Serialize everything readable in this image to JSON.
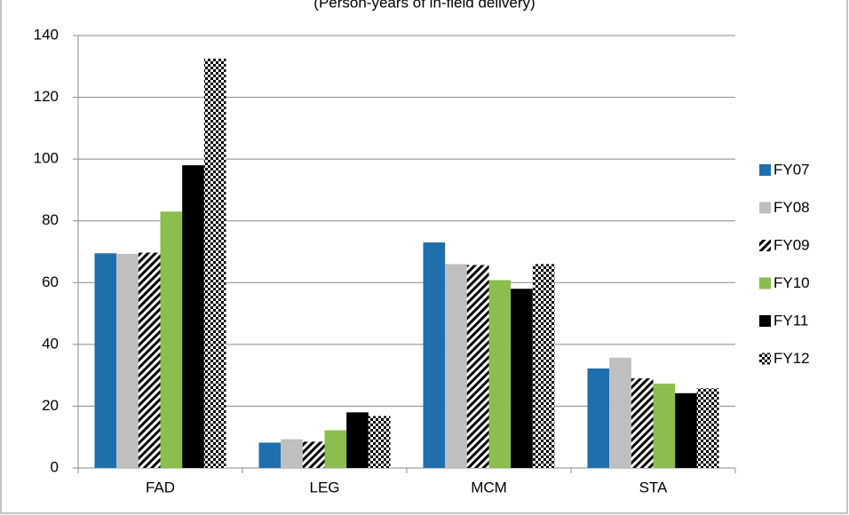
{
  "chart_data": {
    "type": "bar",
    "subtitle": "(Person-years of in-field delivery)",
    "categories": [
      "FAD",
      "LEG",
      "MCM",
      "STA"
    ],
    "series": [
      {
        "name": "FY07",
        "color": "#1f6fad",
        "values": [
          69.5,
          8.2,
          73,
          32.2
        ]
      },
      {
        "name": "FY08",
        "color": "#bfbfbf",
        "values": [
          69.3,
          9.3,
          66,
          35.7
        ]
      },
      {
        "name": "FY09",
        "color": "#000000",
        "pattern": "diagonal",
        "values": [
          69.7,
          8.5,
          65.7,
          29
        ]
      },
      {
        "name": "FY10",
        "color": "#8cbd4f",
        "values": [
          83,
          12.2,
          60.8,
          27.3
        ]
      },
      {
        "name": "FY11",
        "color": "#000000",
        "values": [
          98,
          18,
          58,
          24.2
        ]
      },
      {
        "name": "FY12",
        "color": "#000000",
        "pattern": "checker",
        "values": [
          132.5,
          16.8,
          66,
          25.8
        ]
      }
    ],
    "ylim": [
      0,
      140
    ],
    "yticks": [
      0,
      20,
      40,
      60,
      80,
      100,
      120,
      140
    ],
    "grid": true,
    "legend": "right"
  }
}
